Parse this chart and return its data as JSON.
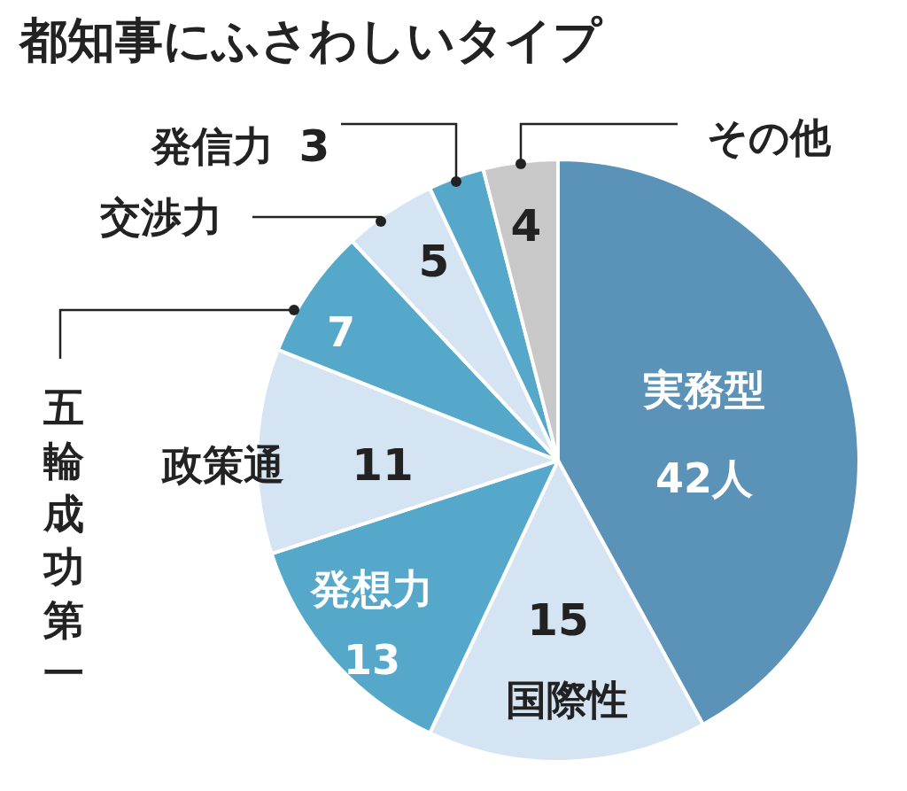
{
  "chart_data": {
    "type": "pie",
    "title": "都知事にふさわしいタイプ",
    "categories": [
      "実務型",
      "国際性",
      "発想力",
      "政策通",
      "五輪成功第一",
      "交渉力",
      "発信力",
      "その他"
    ],
    "values": [
      42,
      15,
      13,
      11,
      7,
      5,
      3,
      4
    ],
    "colors": [
      "#5b93b8",
      "#d4e4f2",
      "#56a8cb",
      "#d4e4f2",
      "#56a8cb",
      "#d4e4f2",
      "#56a8cb",
      "#c8c8c8"
    ],
    "value_labels": [
      "42人",
      "15",
      "13",
      "11",
      "7",
      "5",
      "3",
      "4"
    ]
  }
}
